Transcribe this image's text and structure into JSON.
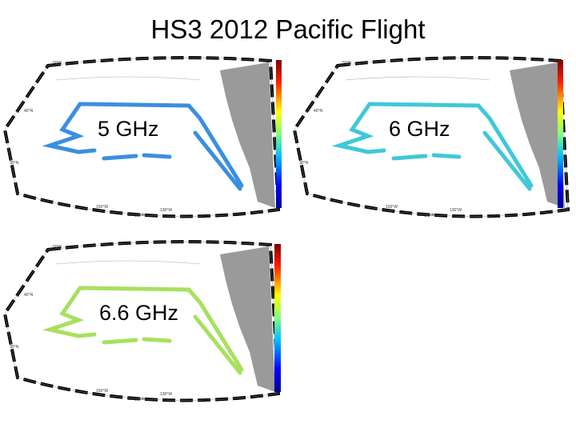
{
  "header": {
    "title": "HS3 2012 Pacific Flight"
  },
  "panels": [
    {
      "label": "5 GHz"
    },
    {
      "label": "6 GHz"
    },
    {
      "label": "6.6 GHz"
    }
  ]
}
